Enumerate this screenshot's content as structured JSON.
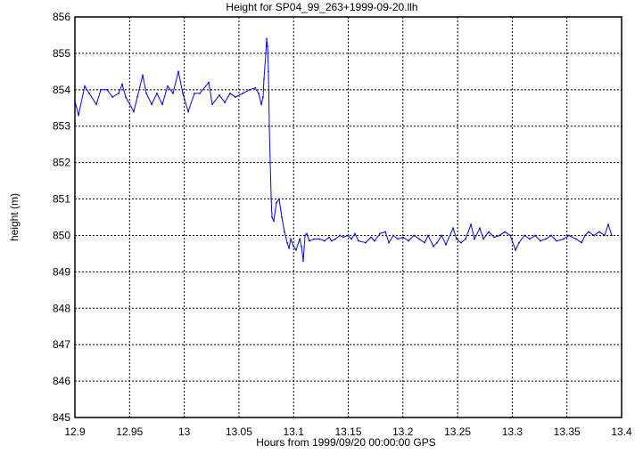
{
  "chart_data": {
    "type": "line",
    "title": "Height for SP04_99_263+1999-09-20.llh",
    "xlabel": "Hours from 1999/09/20 00:00:00 GPS",
    "ylabel": "height (m)",
    "xlim": [
      12.9,
      13.4
    ],
    "ylim": [
      845,
      856
    ],
    "grid": true,
    "series_color": "#0000ff",
    "xticks": [
      "12.9",
      "12.95",
      "13",
      "13.05",
      "13.1",
      "13.15",
      "13.2",
      "13.25",
      "13.3",
      "13.35",
      "13.4"
    ],
    "yticks": [
      "845",
      "846",
      "847",
      "848",
      "849",
      "850",
      "851",
      "852",
      "853",
      "854",
      "855",
      "856"
    ],
    "x": [
      12.9,
      12.9033,
      12.909,
      12.9131,
      12.9196,
      12.9237,
      12.9294,
      12.9343,
      12.94,
      12.9432,
      12.9465,
      12.9538,
      12.9571,
      12.962,
      12.9653,
      12.9702,
      12.975,
      12.9799,
      12.9848,
      12.9897,
      12.9946,
      12.9987,
      13.0036,
      13.0093,
      13.0142,
      13.0224,
      13.0256,
      13.0321,
      13.037,
      13.0419,
      13.0468,
      13.0534,
      13.0599,
      13.0648,
      13.068,
      13.0705,
      13.0721,
      13.0729,
      13.0746,
      13.0754,
      13.0762,
      13.077,
      13.0778,
      13.0786,
      13.0795,
      13.0803,
      13.0819,
      13.0843,
      13.0868,
      13.0892,
      13.0917,
      13.0941,
      13.0958,
      13.0974,
      13.0999,
      13.1023,
      13.1056,
      13.1072,
      13.1088,
      13.1105,
      13.1121,
      13.1145,
      13.1186,
      13.1235,
      13.1284,
      13.1325,
      13.1349,
      13.1382,
      13.1423,
      13.1455,
      13.1496,
      13.1529,
      13.1561,
      13.1594,
      13.1659,
      13.1708,
      13.1741,
      13.179,
      13.1839,
      13.1871,
      13.1912,
      13.1953,
      13.2002,
      13.2051,
      13.21,
      13.2149,
      13.2198,
      13.223,
      13.2279,
      13.2312,
      13.2353,
      13.2393,
      13.2459,
      13.2491,
      13.2532,
      13.2573,
      13.2622,
      13.2654,
      13.2703,
      13.2736,
      13.2785,
      13.2834,
      13.2883,
      13.2932,
      13.2981,
      13.303,
      13.3062,
      13.3111,
      13.316,
      13.3209,
      13.3258,
      13.3307,
      13.3356,
      13.3405,
      13.347,
      13.3519,
      13.3584,
      13.3633,
      13.3666,
      13.3698,
      13.3747,
      13.3796,
      13.3845,
      13.3878,
      13.3911
    ],
    "y": [
      853.7,
      853.3,
      854.1,
      853.9,
      853.6,
      854.0,
      854.0,
      853.8,
      853.9,
      854.15,
      853.8,
      853.4,
      853.8,
      854.4,
      853.9,
      853.6,
      853.9,
      853.6,
      854.1,
      853.9,
      854.5,
      853.9,
      853.4,
      853.9,
      853.9,
      854.2,
      853.6,
      853.85,
      853.65,
      853.9,
      853.8,
      853.9,
      854.0,
      854.05,
      853.9,
      853.6,
      853.8,
      854.3,
      855.0,
      855.4,
      855.2,
      854.5,
      853.0,
      852.0,
      851.0,
      850.5,
      850.4,
      850.9,
      851.0,
      850.5,
      850.1,
      849.8,
      849.65,
      849.9,
      849.7,
      849.6,
      849.9,
      849.7,
      849.3,
      850.0,
      850.05,
      849.85,
      849.9,
      849.9,
      849.85,
      849.95,
      849.85,
      849.9,
      850.0,
      849.95,
      850.0,
      849.9,
      850.05,
      849.85,
      849.8,
      849.95,
      849.85,
      850.05,
      850.1,
      849.8,
      850.0,
      849.9,
      849.95,
      849.85,
      850.0,
      849.9,
      849.8,
      850.0,
      849.7,
      849.8,
      850.0,
      849.75,
      850.2,
      849.9,
      849.8,
      849.9,
      850.3,
      849.9,
      850.2,
      849.9,
      850.1,
      849.95,
      850.0,
      850.1,
      850.0,
      849.6,
      849.8,
      850.0,
      849.9,
      850.0,
      849.85,
      849.9,
      850.0,
      849.85,
      849.9,
      850.0,
      849.9,
      849.8,
      850.0,
      850.1,
      850.0,
      850.1,
      850.0,
      850.3,
      850.0
    ]
  }
}
